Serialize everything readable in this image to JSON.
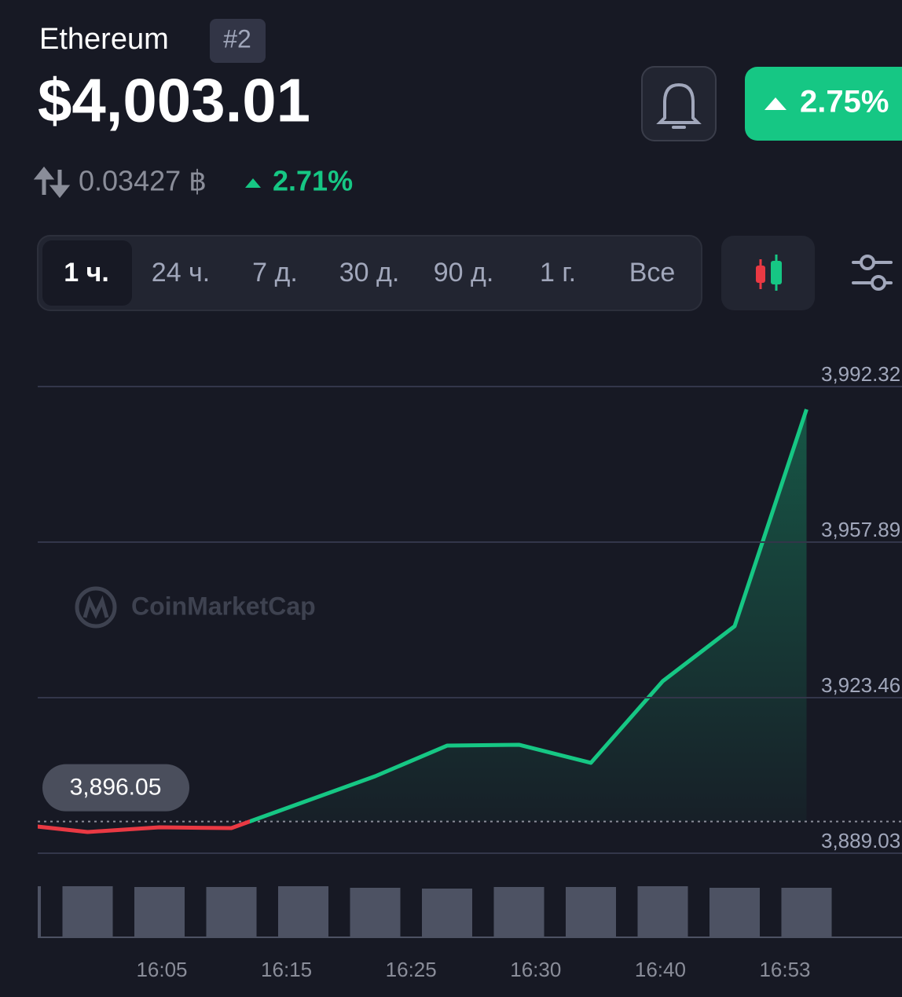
{
  "header": {
    "name": "Ethereum",
    "rank": "#2",
    "price": "$4,003.01",
    "change_badge": "2.75%",
    "btc_price": "0.03427 ฿",
    "btc_change": "2.71%"
  },
  "tabs": [
    "1 ч.",
    "24 ч.",
    "7 д.",
    "30 д.",
    "90 д.",
    "1 г.",
    "Все"
  ],
  "watermark": "CoinMarketCap",
  "chart_data": {
    "type": "line",
    "x": [
      null,
      null,
      null,
      null,
      null,
      null,
      null,
      null,
      null,
      null,
      null,
      null
    ],
    "values": [
      3895.46,
      3893.73,
      3894.77,
      3894.59,
      3900.33,
      3906.07,
      3912.85,
      3913.03,
      3909.03,
      3927.11,
      3939.28,
      3987.28
    ],
    "volumes": [
      65,
      65,
      64,
      64,
      65,
      63,
      62,
      64,
      64,
      65,
      63,
      63
    ],
    "ylim": [
      3889.03,
      3992.32
    ],
    "yticks": [
      {
        "value": 3889.03,
        "label": "3,889.03"
      },
      {
        "value": 3923.46,
        "label": "3,923.46"
      },
      {
        "value": 3957.89,
        "label": "3,957.89"
      },
      {
        "value": 3992.32,
        "label": "3,992.32"
      }
    ],
    "xtick_labels": [
      "16:05",
      "16:15",
      "16:25",
      "16:30",
      "16:40",
      "16:53"
    ],
    "reference": {
      "value": 3896.05,
      "label": "3,896.05"
    },
    "up_color": "#16c784",
    "down_color": "#ea3943",
    "grid": true
  }
}
